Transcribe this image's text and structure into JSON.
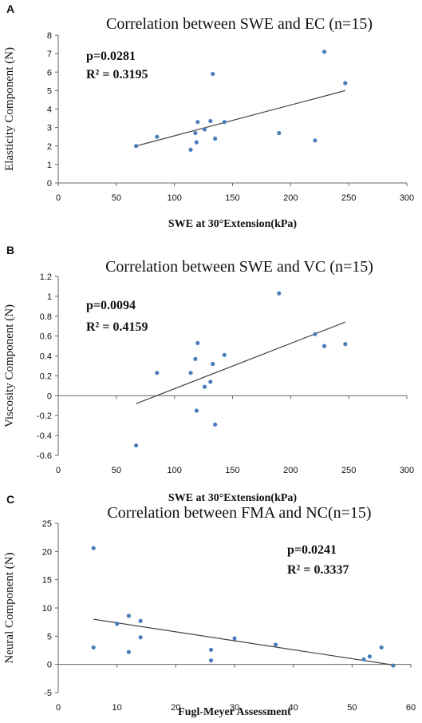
{
  "chart_data": [
    {
      "panel_letter": "A",
      "type": "scatter",
      "title": "Correlation between SWE and EC (n=15)",
      "xlabel": "SWE at 30°Extension(kPa)",
      "ylabel": "Elasticity Component (N)",
      "xlim": [
        0,
        300
      ],
      "ylim": [
        0,
        8
      ],
      "xticks": [
        0,
        50,
        100,
        150,
        200,
        250,
        300
      ],
      "yticks": [
        0,
        1,
        2,
        3,
        4,
        5,
        6,
        7,
        8
      ],
      "annotations": [
        "p=0.0281",
        "R² = 0.3195"
      ],
      "point_color": "#4A7EBB",
      "points": [
        {
          "x": 67,
          "y": 2.0
        },
        {
          "x": 85,
          "y": 2.5
        },
        {
          "x": 114,
          "y": 1.8
        },
        {
          "x": 118,
          "y": 2.7
        },
        {
          "x": 119,
          "y": 2.2
        },
        {
          "x": 120,
          "y": 3.3
        },
        {
          "x": 126,
          "y": 2.9
        },
        {
          "x": 131,
          "y": 3.35
        },
        {
          "x": 133,
          "y": 5.9
        },
        {
          "x": 135,
          "y": 2.4
        },
        {
          "x": 143,
          "y": 3.3
        },
        {
          "x": 190,
          "y": 2.7
        },
        {
          "x": 221,
          "y": 2.3
        },
        {
          "x": 229,
          "y": 7.1
        },
        {
          "x": 247,
          "y": 5.4
        }
      ],
      "trendline": {
        "x": [
          67,
          247
        ],
        "y": [
          2.0,
          5.0
        ]
      }
    },
    {
      "panel_letter": "B",
      "type": "scatter",
      "title": "Correlation between SWE and VC (n=15)",
      "xlabel": "SWE at 30°Extension(kPa)",
      "ylabel": "Viscosity Component (N)",
      "xlim": [
        0,
        300
      ],
      "ylim": [
        -0.6,
        1.2
      ],
      "xticks": [
        0,
        50,
        100,
        150,
        200,
        250,
        300
      ],
      "yticks": [
        -0.6,
        -0.4,
        -0.2,
        0,
        0.2,
        0.4,
        0.6,
        0.8,
        1,
        1.2
      ],
      "annotations": [
        "p=0.0094",
        "R² = 0.4159"
      ],
      "point_color": "#4A7EBB",
      "points": [
        {
          "x": 67,
          "y": -0.5
        },
        {
          "x": 85,
          "y": 0.23
        },
        {
          "x": 114,
          "y": 0.23
        },
        {
          "x": 118,
          "y": 0.37
        },
        {
          "x": 119,
          "y": -0.15
        },
        {
          "x": 120,
          "y": 0.53
        },
        {
          "x": 126,
          "y": 0.09
        },
        {
          "x": 131,
          "y": 0.14
        },
        {
          "x": 133,
          "y": 0.32
        },
        {
          "x": 135,
          "y": -0.29
        },
        {
          "x": 143,
          "y": 0.41
        },
        {
          "x": 190,
          "y": 1.03
        },
        {
          "x": 221,
          "y": 0.62
        },
        {
          "x": 229,
          "y": 0.5
        },
        {
          "x": 247,
          "y": 0.52
        }
      ],
      "trendline": {
        "x": [
          67,
          247
        ],
        "y": [
          -0.08,
          0.74
        ]
      }
    },
    {
      "panel_letter": "C",
      "type": "scatter",
      "title": "Correlation between FMA and NC(n=15)",
      "xlabel": "Fugl-Meyer Assessment",
      "ylabel": "Neural Component (N)",
      "xlim": [
        0,
        60
      ],
      "ylim": [
        -5,
        25
      ],
      "xticks": [
        0,
        10,
        20,
        30,
        40,
        50,
        60
      ],
      "yticks": [
        -5,
        0,
        5,
        10,
        15,
        20,
        25
      ],
      "annotations": [
        "p=0.0241",
        "R² = 0.3337"
      ],
      "point_color": "#4A7EBB",
      "points": [
        {
          "x": 6,
          "y": 20.6
        },
        {
          "x": 6,
          "y": 3.0
        },
        {
          "x": 10,
          "y": 7.2
        },
        {
          "x": 12,
          "y": 8.6
        },
        {
          "x": 12,
          "y": 2.2
        },
        {
          "x": 14,
          "y": 7.7
        },
        {
          "x": 14,
          "y": 4.8
        },
        {
          "x": 26,
          "y": 2.6
        },
        {
          "x": 26,
          "y": 0.7
        },
        {
          "x": 30,
          "y": 4.6
        },
        {
          "x": 37,
          "y": 3.5
        },
        {
          "x": 52,
          "y": 0.9
        },
        {
          "x": 53,
          "y": 1.4
        },
        {
          "x": 55,
          "y": 3.0
        },
        {
          "x": 57,
          "y": -0.2
        }
      ],
      "trendline": {
        "x": [
          6,
          57
        ],
        "y": [
          8.0,
          -0.1
        ]
      }
    }
  ]
}
